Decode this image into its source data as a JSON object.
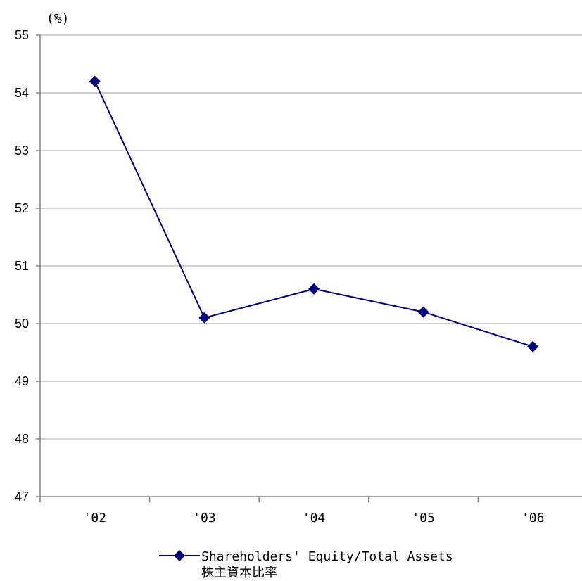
{
  "chart_data": {
    "type": "line",
    "unit_label": "(%)",
    "categories": [
      "'02",
      "'03",
      "'04",
      "'05",
      "'06"
    ],
    "series": [
      {
        "name": "Shareholders' Equity/Total Assets",
        "name_ja": "株主資本比率",
        "values": [
          54.2,
          50.1,
          50.6,
          50.2,
          49.6
        ],
        "color": "#000080"
      }
    ],
    "yticks": [
      47,
      48,
      49,
      50,
      51,
      52,
      53,
      54,
      55
    ],
    "ylim": [
      47,
      55
    ],
    "grid": true,
    "legend_position": "bottom-center"
  }
}
